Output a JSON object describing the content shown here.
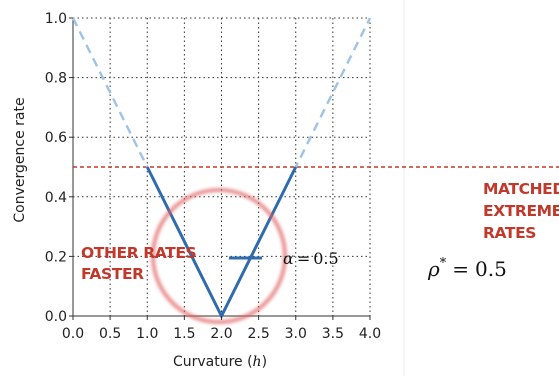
{
  "chart_data": {
    "type": "line",
    "xlabel": "Curvature (h)",
    "xlabel_text": "Curvature (",
    "xlabel_var": "h",
    "xlabel_close": ")",
    "ylabel": "Convergence rate",
    "xlim": [
      0.0,
      4.0
    ],
    "ylim": [
      0.0,
      1.0
    ],
    "xticks": [
      "0.0",
      "0.5",
      "1.0",
      "1.5",
      "2.0",
      "2.5",
      "3.0",
      "3.5",
      "4.0"
    ],
    "yticks": [
      "0.0",
      "0.2",
      "0.4",
      "0.6",
      "0.8",
      "1.0"
    ],
    "grid": true,
    "series": [
      {
        "style": "dashed",
        "color": "#9ec3e6",
        "x": [
          0.0,
          2.0,
          4.0
        ],
        "y": [
          1.0,
          0.0,
          1.0
        ]
      },
      {
        "style": "solid",
        "color": "#2f6bad",
        "x": [
          1.0,
          2.0,
          3.0
        ],
        "y": [
          0.5,
          0.0,
          0.5
        ]
      }
    ],
    "reference_line": {
      "y": 0.5,
      "color": "#c0392b",
      "style": "dashed"
    },
    "legend": {
      "symbol": "α",
      "equals": "=",
      "value": "0.5",
      "color": "#2f6bad",
      "placement": "lower-right"
    },
    "annotations": {
      "circle_color": "#e06060",
      "left_lines": [
        "OTHER RATES",
        "FASTER"
      ],
      "right_lines": [
        "MATCHED",
        "EXTREME",
        "RATES"
      ],
      "label_color": "#c0392b",
      "rho_symbol": "ρ",
      "rho_sup": "*",
      "rho_equals": "=",
      "rho_value": "0.5"
    }
  }
}
